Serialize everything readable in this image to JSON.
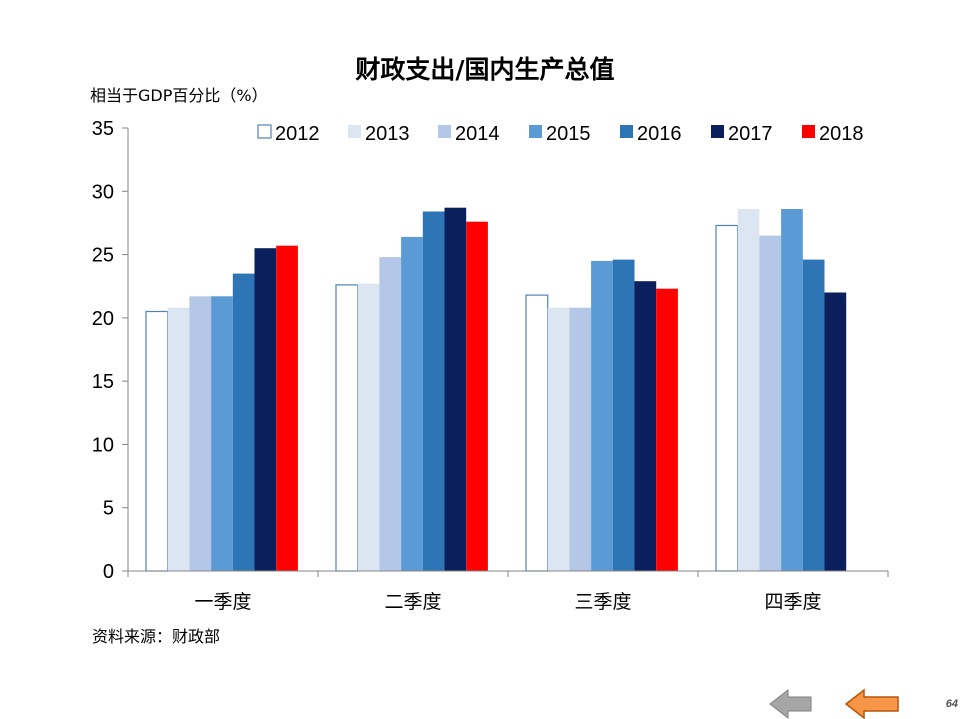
{
  "chart_data": {
    "type": "bar",
    "title": "财政支出/国内生产总值",
    "ylabel": "相当于GDP百分比（%）",
    "xlabel": "",
    "ylim": [
      0,
      35
    ],
    "yticks": [
      0,
      5,
      10,
      15,
      20,
      25,
      30,
      35
    ],
    "categories": [
      "一季度",
      "二季度",
      "三季度",
      "四季度"
    ],
    "legend_position": "top",
    "grid": false,
    "series": [
      {
        "name": "2012",
        "color": "#ffffff",
        "stroke": "#4f81bd",
        "values": [
          20.5,
          22.6,
          21.8,
          27.3
        ]
      },
      {
        "name": "2013",
        "color": "#dce6f2",
        "values": [
          20.8,
          22.7,
          20.8,
          28.6
        ]
      },
      {
        "name": "2014",
        "color": "#b4c7e7",
        "values": [
          21.7,
          24.8,
          20.8,
          26.5
        ]
      },
      {
        "name": "2015",
        "color": "#5b9bd5",
        "values": [
          21.7,
          26.4,
          24.5,
          28.6
        ]
      },
      {
        "name": "2016",
        "color": "#2e75b6",
        "values": [
          23.5,
          28.4,
          24.6,
          24.6
        ]
      },
      {
        "name": "2017",
        "color": "#0a1f5c",
        "values": [
          25.5,
          28.7,
          22.9,
          22.0
        ]
      },
      {
        "name": "2018",
        "color": "#ff0000",
        "values": [
          25.7,
          27.6,
          22.3,
          null
        ]
      }
    ]
  },
  "source": "资料来源：财政部",
  "page_number": "64",
  "nav": {
    "prev_color": "#a6a6a6",
    "next_color": "#f79646"
  }
}
